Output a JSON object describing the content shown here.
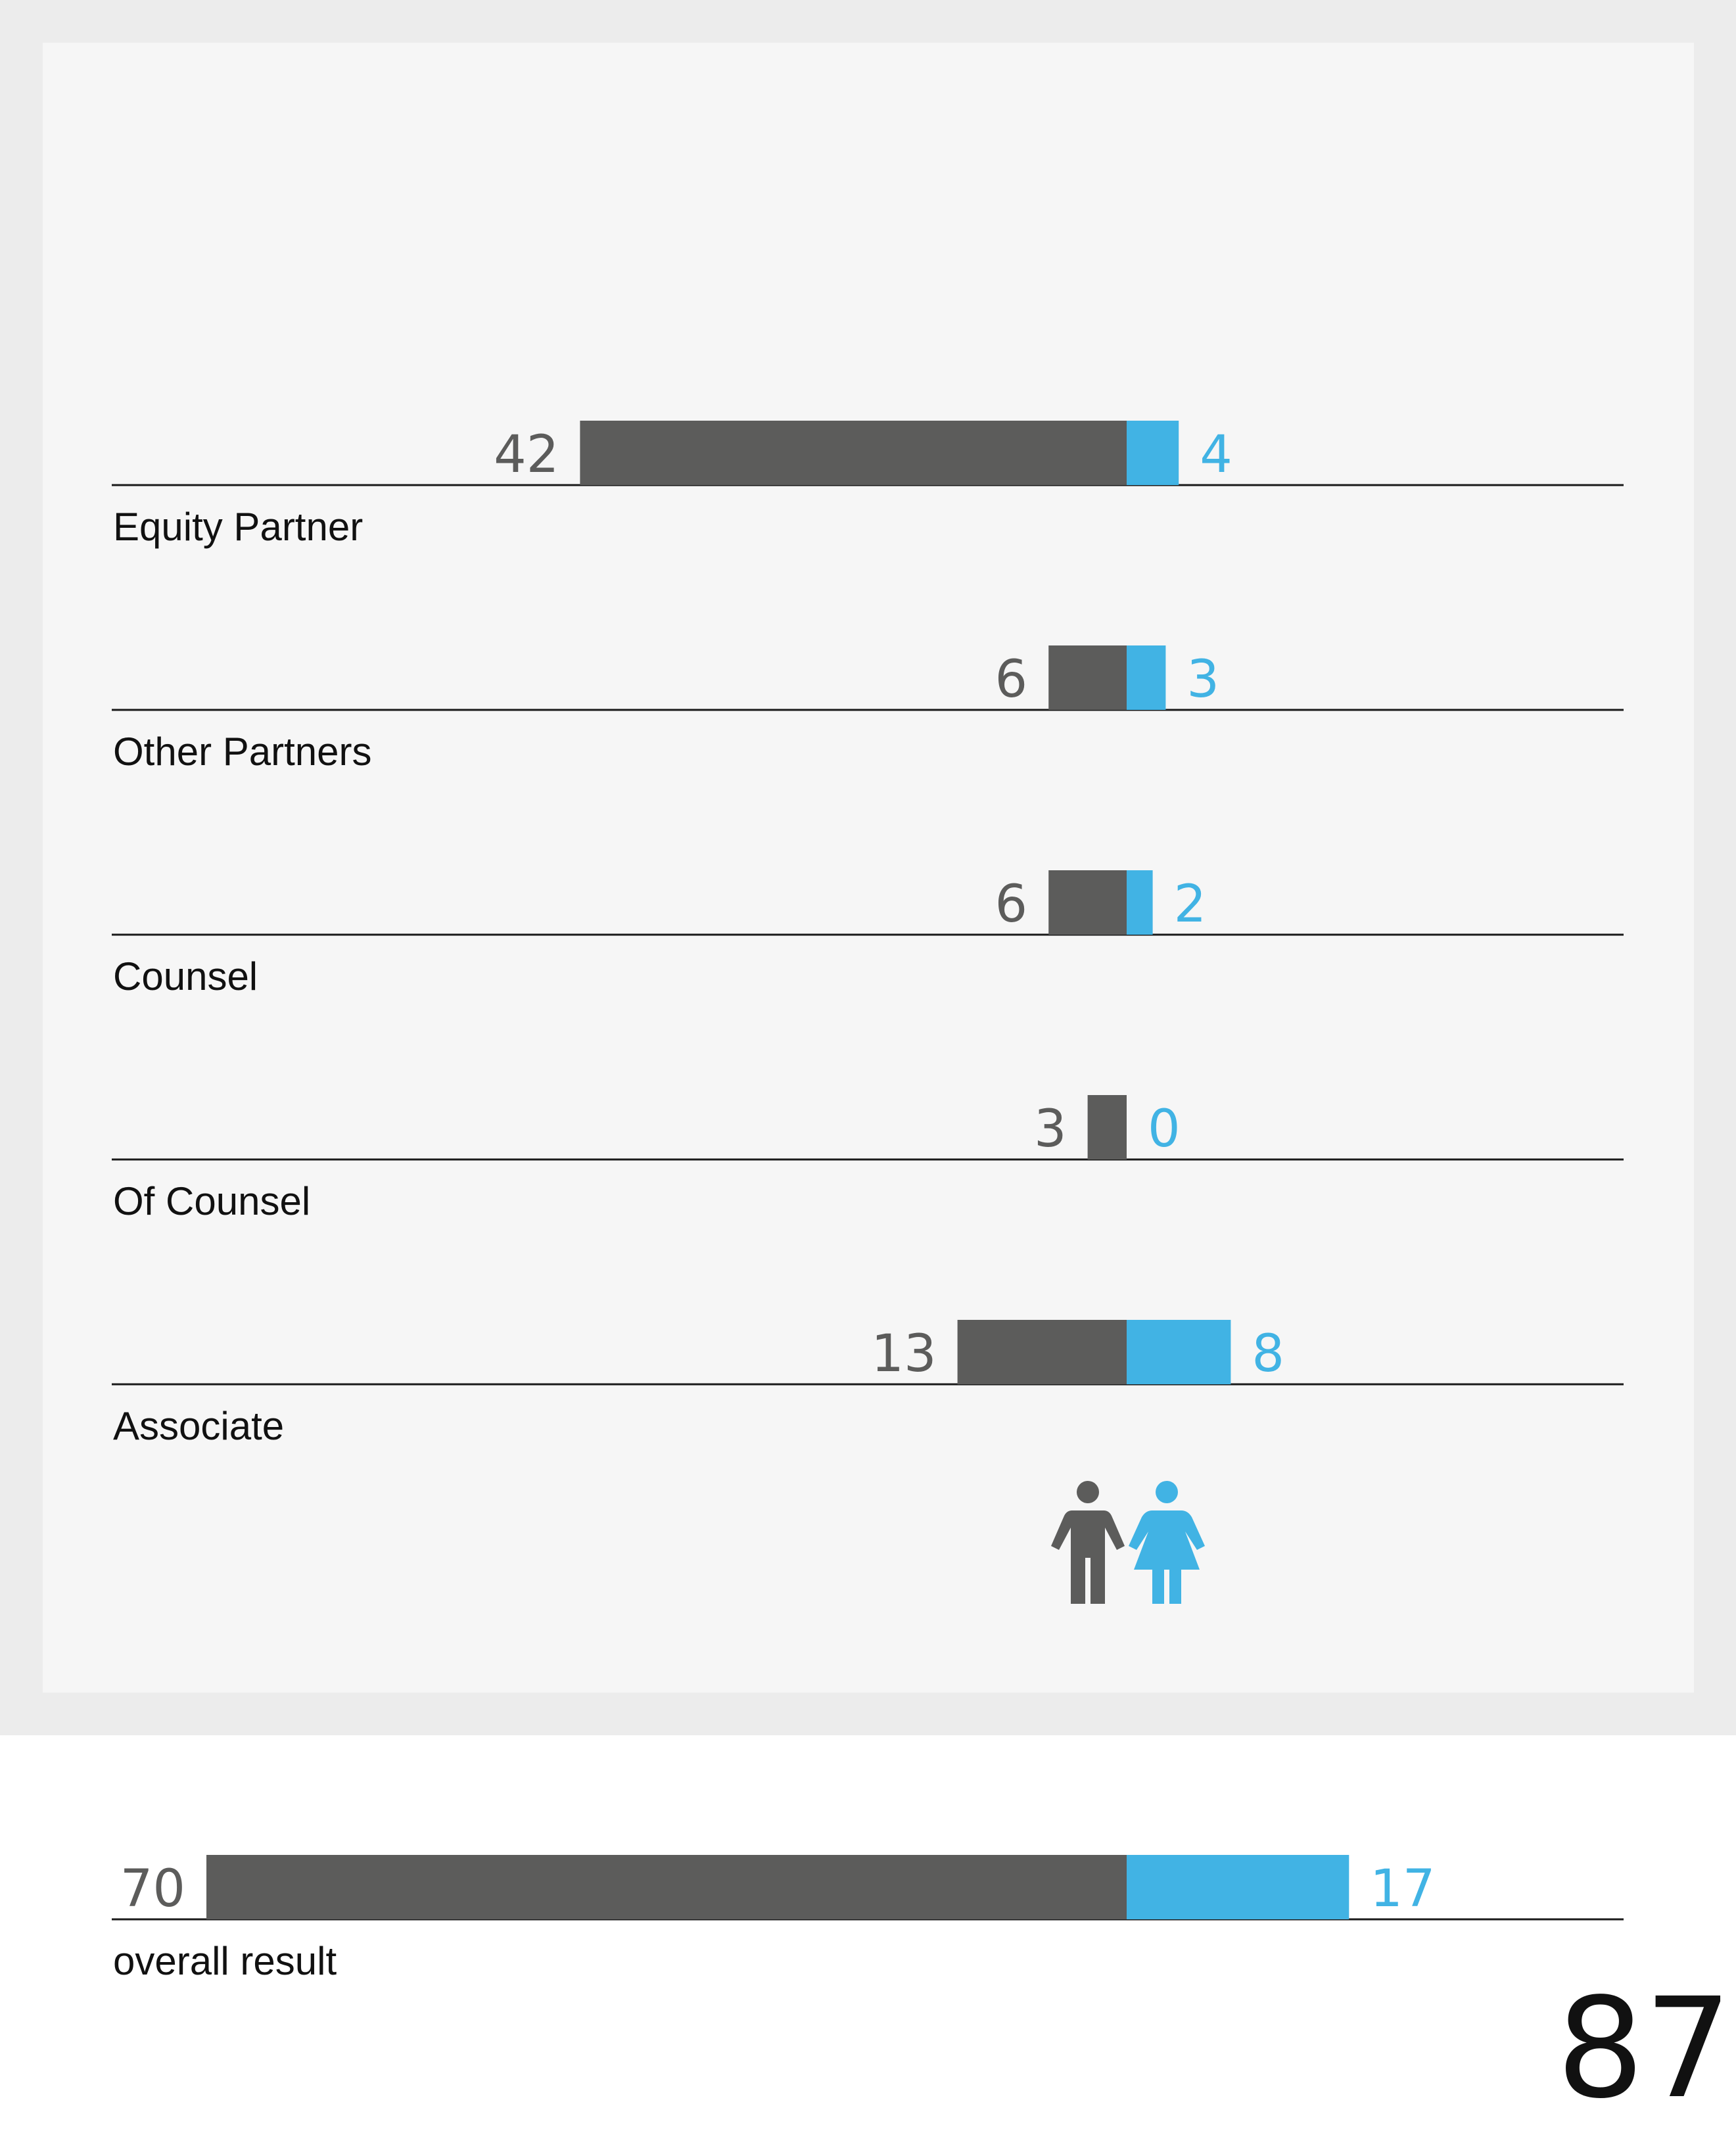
{
  "chart_data": {
    "type": "bar",
    "categories": [
      "Equity Partner",
      "Other Partners",
      "Counsel",
      "Of Counsel",
      "Associate"
    ],
    "series": [
      {
        "values": [
          42,
          6,
          6,
          3,
          13
        ]
      },
      {
        "values": [
          4,
          3,
          2,
          0,
          8
        ]
      }
    ],
    "colors": {
      "male": "#5c5c5b",
      "female": "#41b3e4"
    },
    "icons": [
      "male-figure-icon",
      "female-figure-icon"
    ],
    "overall": {
      "label": "overall result",
      "male": 70,
      "female": 17
    }
  },
  "page_number": "87"
}
